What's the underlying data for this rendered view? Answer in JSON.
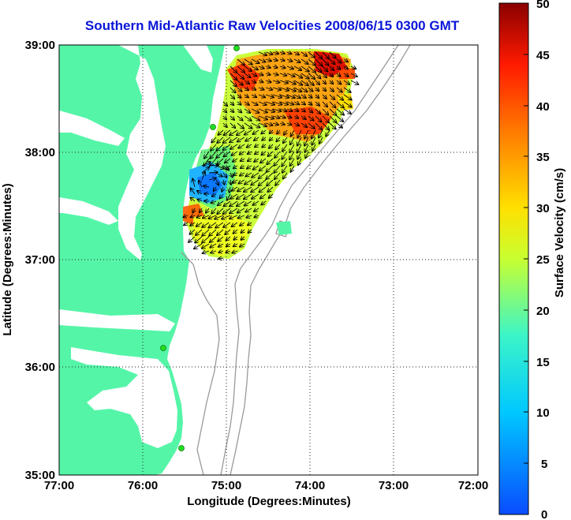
{
  "figure": {
    "title": "Southern Mid-Atlantic Raw Velocities 2008/06/15 0300 GMT",
    "xlabel": "Longitude (Degrees:Minutes)",
    "ylabel": "Latitude (Degrees:Minutes)",
    "colorbar_label": "Surface Velocity (cm/s)"
  },
  "map": {
    "lon_ticks": [
      "77:00",
      "76:00",
      "75:00",
      "74:00",
      "73:00",
      "72:00"
    ],
    "lat_ticks": [
      "39:00",
      "38:00",
      "37:00",
      "36:00",
      "35:00"
    ],
    "land_color": "#55f5a8",
    "water_color": "#ffffff",
    "bathymetry_color": "#9a9a9a",
    "station_marker_color": "#22dd22"
  },
  "colorbar": {
    "ticks": [
      "50",
      "45",
      "40",
      "35",
      "30",
      "25",
      "20",
      "15",
      "10",
      "5",
      "0"
    ],
    "range_cms": [
      0,
      50
    ],
    "colormap": "jet"
  }
}
